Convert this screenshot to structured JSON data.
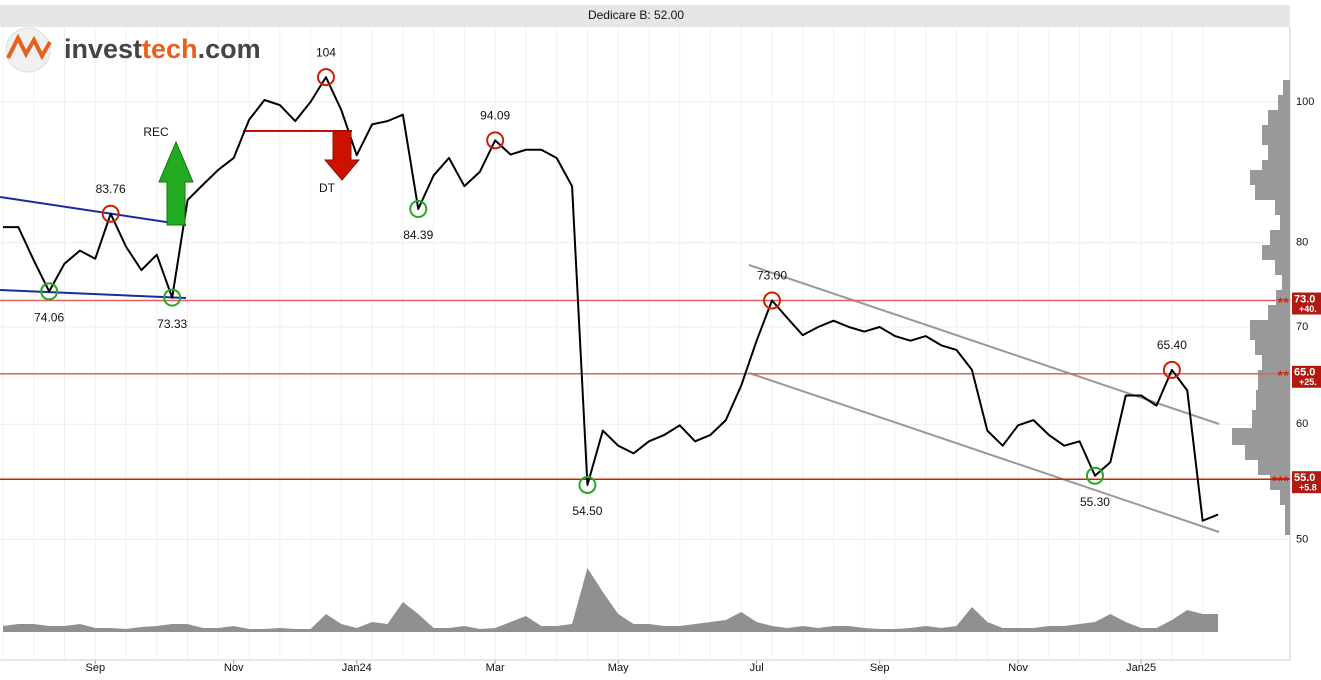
{
  "logo": [
    "invest",
    "tech",
    ".com"
  ],
  "chart_data": [
    {
      "type": "line",
      "title": "Dedicare B: 52.00",
      "log_scale": true,
      "grid": true,
      "categories": [
        null,
        null,
        null,
        null,
        null,
        null,
        "Sep",
        null,
        null,
        null,
        null,
        null,
        null,
        null,
        null,
        "Nov",
        null,
        null,
        null,
        null,
        null,
        null,
        null,
        "Jan24",
        null,
        null,
        null,
        null,
        null,
        null,
        null,
        null,
        "Mar",
        null,
        null,
        null,
        null,
        null,
        null,
        null,
        "May",
        null,
        null,
        null,
        null,
        null,
        null,
        null,
        null,
        "Jul",
        null,
        null,
        null,
        null,
        null,
        null,
        null,
        "Sep",
        null,
        null,
        null,
        null,
        null,
        null,
        null,
        null,
        "Nov",
        null,
        null,
        null,
        null,
        null,
        null,
        null,
        "Jan25",
        null,
        null,
        null,
        null,
        null
      ],
      "series": [
        {
          "color": "#000000",
          "values": [
            82,
            82,
            77.8,
            74.06,
            77.4,
            79,
            78,
            83.76,
            79.5,
            76.6,
            78.5,
            73.33,
            85.6,
            87.7,
            89.8,
            91.5,
            97.2,
            100.3,
            99.5,
            97,
            100,
            104,
            98.7,
            91.9,
            96.5,
            97,
            98,
            84.39,
            89,
            91.5,
            87.5,
            89.5,
            94.09,
            92,
            92.7,
            92.7,
            91.5,
            87.5,
            54.5,
            59.4,
            58,
            57.3,
            58.4,
            59,
            59.9,
            58.4,
            59,
            60.4,
            63.8,
            68.5,
            73,
            71,
            69.1,
            70,
            70.7,
            70,
            69.5,
            70,
            69,
            68.5,
            69,
            68,
            67.5,
            65.4,
            59.4,
            58,
            59.9,
            60.4,
            59,
            58,
            58.4,
            55.3,
            56.5,
            62.8,
            62.8,
            61.8,
            65.4,
            63.3,
            51.5,
            52
          ]
        }
      ],
      "ylim": [
        41.3,
        112.6
      ],
      "yticks": [
        50,
        60,
        70,
        80,
        100
      ],
      "annotations": [
        {
          "point": 3,
          "value": 74.06,
          "color": "#22aa22",
          "marker": "bottom"
        },
        {
          "point": 7,
          "value": 83.76,
          "color": "#cc2200",
          "marker": "top"
        },
        {
          "point": 11,
          "value": 73.33,
          "color": "#22aa22",
          "marker": "bottom"
        },
        {
          "point": 21,
          "value": 104,
          "color": "#cc2200",
          "marker": "top"
        },
        {
          "point": 27,
          "value": 84.39,
          "color": "#22aa22",
          "marker": "bottom"
        },
        {
          "point": 32,
          "value": 94.09,
          "color": "#cc2200",
          "marker": "top"
        },
        {
          "point": 38,
          "value": {
            "value": 54.5,
            "label": "54.50"
          },
          "color": "#22aa22",
          "marker": "bottom"
        },
        {
          "point": 50,
          "value": {
            "value": 73,
            "label": "73.00"
          },
          "color": "#cc2200",
          "marker": "top"
        },
        {
          "point": 71,
          "value": {
            "value": 55.3,
            "label": "55.30"
          },
          "color": "#22aa22",
          "marker": "bottom"
        },
        {
          "point": 76,
          "value": {
            "value": 65.4,
            "label": "65.40"
          },
          "color": "#cc2200",
          "marker": "top"
        }
      ],
      "levels": [
        {
          "value": {
            "value": 73,
            "label": "73.0"
          },
          "change": "+40.",
          "stars": "**",
          "color": "#e06060"
        },
        {
          "value": {
            "value": 65,
            "label": "65.0"
          },
          "change": "+25.",
          "stars": "**",
          "color": "#e06060"
        },
        {
          "value": {
            "value": 55,
            "label": "55.0"
          },
          "change": "+5.8",
          "stars": "***",
          "color": "#cc2200"
        }
      ],
      "signals": [
        "REC",
        "DT"
      ]
    },
    {
      "type": "area",
      "color": "#909090",
      "values": [
        6,
        8,
        8,
        6,
        6,
        8,
        4,
        4,
        3,
        5,
        6,
        8,
        8,
        4,
        4,
        6,
        3,
        3,
        4,
        3,
        3,
        18,
        8,
        4,
        10,
        8,
        30,
        18,
        4,
        4,
        6,
        3,
        4,
        10,
        16,
        6,
        6,
        8,
        64,
        40,
        18,
        8,
        8,
        6,
        6,
        8,
        10,
        12,
        20,
        10,
        6,
        4,
        6,
        4,
        6,
        6,
        4,
        3,
        3,
        4,
        6,
        4,
        6,
        25,
        10,
        4,
        4,
        4,
        6,
        6,
        8,
        10,
        18,
        10,
        4,
        4,
        12,
        22,
        18,
        18
      ],
      "ylim": [
        0,
        100
      ]
    }
  ]
}
